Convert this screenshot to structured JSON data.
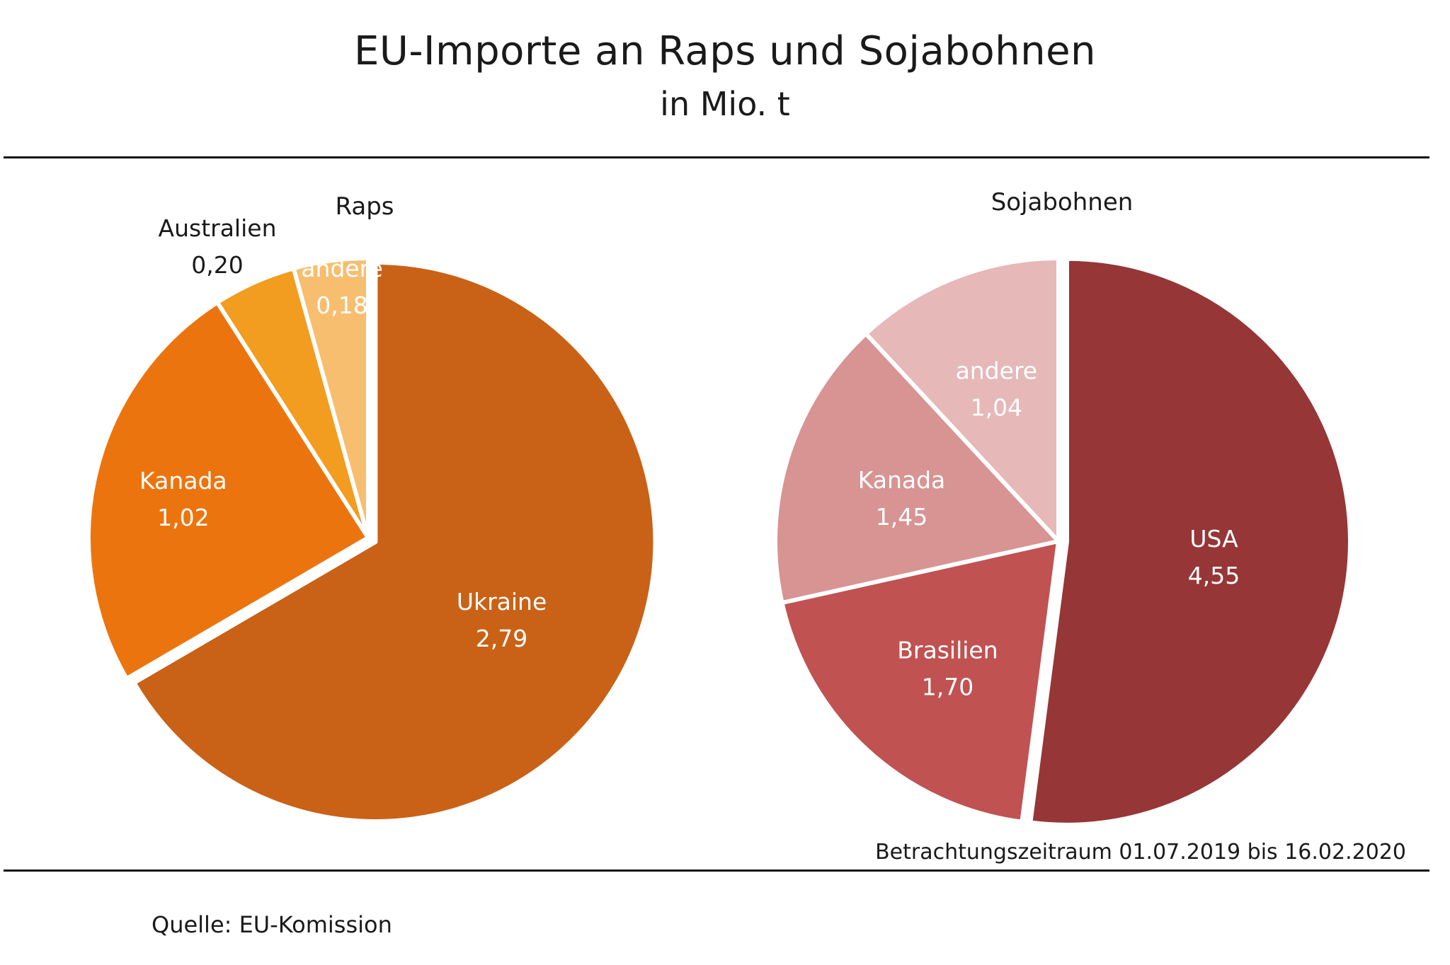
{
  "header": {
    "title": "EU-Importe an Raps und Sojabohnen",
    "subtitle": "in Mio. t"
  },
  "chart_data": [
    {
      "type": "pie",
      "title": "Raps",
      "unit": "Mio. t",
      "slices": [
        {
          "label": "Ukraine",
          "value_text": "2,79",
          "value": 2.79,
          "color": "#c96217",
          "text_color": "#ffffff"
        },
        {
          "label": "Kanada",
          "value_text": "1,02",
          "value": 1.02,
          "color": "#ec740e",
          "text_color": "#ffffff"
        },
        {
          "label": "Australien",
          "value_text": "0,20",
          "value": 0.2,
          "color": "#f29c20",
          "text_color": "#1a1a1a"
        },
        {
          "label": "andere",
          "value_text": "0,18",
          "value": 0.18,
          "color": "#f7be6f",
          "text_color": "#ffffff"
        }
      ]
    },
    {
      "type": "pie",
      "title": "Sojabohnen",
      "unit": "Mio. t",
      "slices": [
        {
          "label": "USA",
          "value_text": "4,55",
          "value": 4.55,
          "color": "#963636",
          "text_color": "#ffffff"
        },
        {
          "label": "Brasilien",
          "value_text": "1,70",
          "value": 1.7,
          "color": "#c15252",
          "text_color": "#ffffff"
        },
        {
          "label": "Kanada",
          "value_text": "1,45",
          "value": 1.45,
          "color": "#d89393",
          "text_color": "#ffffff"
        },
        {
          "label": "andere",
          "value_text": "1,04",
          "value": 1.04,
          "color": "#e6b8b8",
          "text_color": "#ffffff"
        }
      ]
    }
  ],
  "footer": {
    "period_note": "Betrachtungszeitraum 01.07.2019 bis 16.02.2020",
    "source": "Quelle:  EU-Komission"
  }
}
